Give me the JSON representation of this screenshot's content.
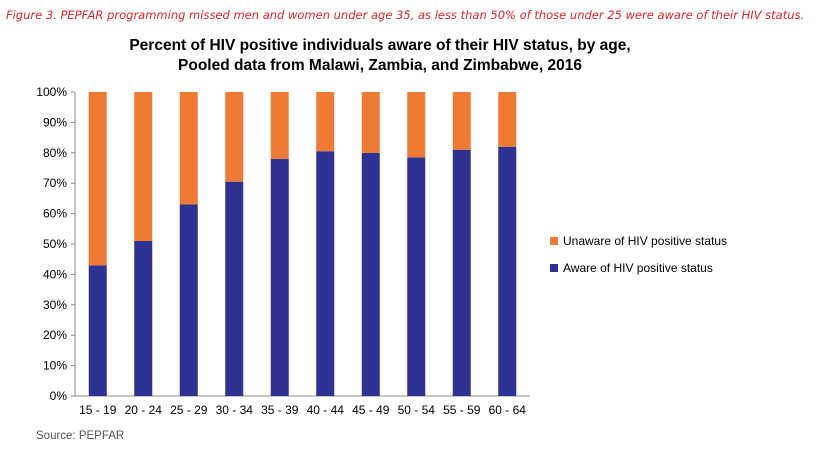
{
  "caption": "Figure 3. PEPFAR programming missed men and women under age 35, as less than 50% of those under 25 were aware of their HIV status.",
  "source": "Source: PEPFAR",
  "colors": {
    "aware": "#2e3192",
    "unaware": "#ee7a33",
    "axis": "#888888",
    "caption": "#d7262e"
  },
  "chart_data": {
    "type": "bar",
    "stacked": true,
    "title": "Percent of HIV positive individuals aware of their HIV status, by age,",
    "subtitle": "Pooled data from Malawi, Zambia, and Zimbabwe, 2016",
    "xlabel": "",
    "ylabel": "",
    "categories": [
      "15 - 19",
      "20 - 24",
      "25 - 29",
      "30 - 34",
      "35 - 39",
      "40 - 44",
      "45 - 49",
      "50 - 54",
      "55 - 59",
      "60 - 64"
    ],
    "ylim": [
      0,
      100
    ],
    "yticks": [
      0,
      10,
      20,
      30,
      40,
      50,
      60,
      70,
      80,
      90,
      100
    ],
    "ytick_labels": [
      "0%",
      "10%",
      "20%",
      "30%",
      "40%",
      "50%",
      "60%",
      "70%",
      "80%",
      "90%",
      "100%"
    ],
    "grid": false,
    "legend_position": "right",
    "series": [
      {
        "name": "Aware of HIV positive status",
        "values": [
          43,
          51,
          63,
          70.5,
          78,
          80.5,
          80,
          78.5,
          81,
          82
        ]
      },
      {
        "name": "Unaware of HIV positive status",
        "values": [
          57,
          49,
          37,
          29.5,
          22,
          19.5,
          20,
          21.5,
          19,
          18
        ]
      }
    ]
  }
}
